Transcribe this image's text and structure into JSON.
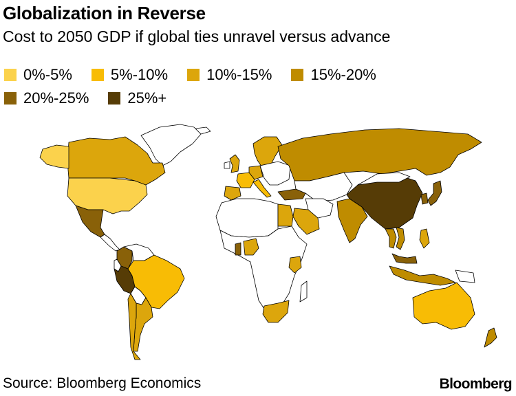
{
  "title": "Globalization in Reverse",
  "subtitle": "Cost to 2050 GDP if global ties unravel versus advance",
  "legend": [
    {
      "label": "0%-5%",
      "color": "#fbd24c"
    },
    {
      "label": "5%-10%",
      "color": "#f8bc05"
    },
    {
      "label": "10%-15%",
      "color": "#dca60c"
    },
    {
      "label": "15%-20%",
      "color": "#bf8c00"
    },
    {
      "label": "20%-25%",
      "color": "#896109"
    },
    {
      "label": "25%+",
      "color": "#563c06"
    }
  ],
  "no_data_color": "#ffffff",
  "regions": [
    {
      "name": "United States",
      "bin": "0%-5%"
    },
    {
      "name": "Canada",
      "bin": "10%-15%"
    },
    {
      "name": "Mexico",
      "bin": "20%-25%"
    },
    {
      "name": "Brazil",
      "bin": "5%-10%"
    },
    {
      "name": "Argentina",
      "bin": "10%-15%"
    },
    {
      "name": "Chile",
      "bin": "10%-15%"
    },
    {
      "name": "Peru",
      "bin": "25%+"
    },
    {
      "name": "Colombia",
      "bin": "20%-25%"
    },
    {
      "name": "United Kingdom",
      "bin": "10%-15%"
    },
    {
      "name": "France",
      "bin": "5%-10%"
    },
    {
      "name": "Germany",
      "bin": "10%-15%"
    },
    {
      "name": "Italy",
      "bin": "5%-10%"
    },
    {
      "name": "Spain",
      "bin": "10%-15%"
    },
    {
      "name": "Scandinavia",
      "bin": "10%-15%"
    },
    {
      "name": "Russia",
      "bin": "15%-20%"
    },
    {
      "name": "Turkey",
      "bin": "20%-25%"
    },
    {
      "name": "Egypt",
      "bin": "10%-15%"
    },
    {
      "name": "Saudi Arabia",
      "bin": "10%-15%"
    },
    {
      "name": "Nigeria",
      "bin": "10%-15%"
    },
    {
      "name": "Ghana",
      "bin": "20%-25%"
    },
    {
      "name": "Kenya",
      "bin": "10%-15%"
    },
    {
      "name": "South Africa",
      "bin": "10%-15%"
    },
    {
      "name": "India",
      "bin": "15%-20%"
    },
    {
      "name": "China",
      "bin": "25%+"
    },
    {
      "name": "Japan",
      "bin": "20%-25%"
    },
    {
      "name": "South Korea",
      "bin": "20%-25%"
    },
    {
      "name": "Vietnam",
      "bin": "15%-20%"
    },
    {
      "name": "Thailand",
      "bin": "15%-20%"
    },
    {
      "name": "Malaysia",
      "bin": "20%-25%"
    },
    {
      "name": "Philippines",
      "bin": "10%-15%"
    },
    {
      "name": "Indonesia",
      "bin": "15%-20%"
    },
    {
      "name": "Australia",
      "bin": "5%-10%"
    },
    {
      "name": "New Zealand",
      "bin": "15%-20%"
    }
  ],
  "source": "Source: Bloomberg Economics",
  "brand": "Bloomberg"
}
